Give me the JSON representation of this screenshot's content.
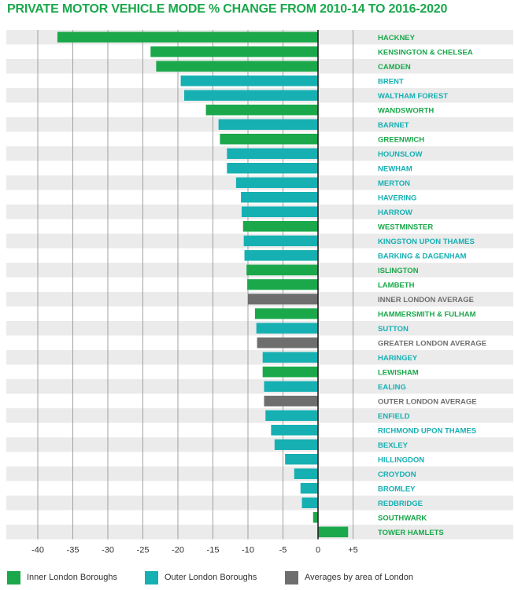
{
  "colors": {
    "inner": "#1aa84b",
    "outer": "#16b0b3",
    "average": "#6e6e6e"
  },
  "chart_data": {
    "type": "bar",
    "orientation": "horizontal",
    "title": "PRIVATE MOTOR VEHICLE MODE % CHANGE FROM 2010-14 TO 2016-2020",
    "xlim": [
      -40,
      5
    ],
    "xticks": [
      -40,
      -35,
      -30,
      -25,
      -20,
      -15,
      -10,
      -5,
      0,
      5
    ],
    "xtick_labels": [
      "-40",
      "-35",
      "-30",
      "-25",
      "-20",
      "-15",
      "-10",
      "-5",
      "0",
      "+5"
    ],
    "legend": [
      {
        "key": "inner",
        "label": "Inner London Boroughs"
      },
      {
        "key": "outer",
        "label": "Outer London Boroughs"
      },
      {
        "key": "average",
        "label": "Averages by area of London"
      }
    ],
    "bars": [
      {
        "label": "HACKNEY",
        "value": -37.2,
        "group": "inner"
      },
      {
        "label": "KENSINGTON & CHELSEA",
        "value": -23.9,
        "group": "inner"
      },
      {
        "label": "CAMDEN",
        "value": -23.1,
        "group": "inner"
      },
      {
        "label": "BRENT",
        "value": -19.6,
        "group": "outer"
      },
      {
        "label": "WALTHAM FOREST",
        "value": -19.1,
        "group": "outer"
      },
      {
        "label": "WANDSWORTH",
        "value": -16.0,
        "group": "inner"
      },
      {
        "label": "BARNET",
        "value": -14.2,
        "group": "outer"
      },
      {
        "label": "GREENWICH",
        "value": -14.0,
        "group": "inner"
      },
      {
        "label": "HOUNSLOW",
        "value": -13.0,
        "group": "outer"
      },
      {
        "label": "NEWHAM",
        "value": -13.0,
        "group": "outer"
      },
      {
        "label": "MERTON",
        "value": -11.7,
        "group": "outer"
      },
      {
        "label": "HAVERING",
        "value": -11.0,
        "group": "outer"
      },
      {
        "label": "HARROW",
        "value": -10.9,
        "group": "outer"
      },
      {
        "label": "WESTMINSTER",
        "value": -10.7,
        "group": "inner"
      },
      {
        "label": "KINGSTON UPON THAMES",
        "value": -10.6,
        "group": "outer"
      },
      {
        "label": "BARKING & DAGENHAM",
        "value": -10.5,
        "group": "outer"
      },
      {
        "label": "ISLINGTON",
        "value": -10.2,
        "group": "inner"
      },
      {
        "label": "LAMBETH",
        "value": -10.1,
        "group": "inner"
      },
      {
        "label": "INNER LONDON AVERAGE",
        "value": -10.0,
        "group": "average"
      },
      {
        "label": "HAMMERSMITH & FULHAM",
        "value": -9.0,
        "group": "inner"
      },
      {
        "label": "SUTTON",
        "value": -8.8,
        "group": "outer"
      },
      {
        "label": "GREATER LONDON AVERAGE",
        "value": -8.7,
        "group": "average"
      },
      {
        "label": "HARINGEY",
        "value": -7.9,
        "group": "outer"
      },
      {
        "label": "LEWISHAM",
        "value": -7.9,
        "group": "inner"
      },
      {
        "label": "EALING",
        "value": -7.7,
        "group": "outer"
      },
      {
        "label": "OUTER LONDON AVERAGE",
        "value": -7.7,
        "group": "average"
      },
      {
        "label": "ENFIELD",
        "value": -7.5,
        "group": "outer"
      },
      {
        "label": "RICHMOND UPON THAMES",
        "value": -6.7,
        "group": "outer"
      },
      {
        "label": "BEXLEY",
        "value": -6.2,
        "group": "outer"
      },
      {
        "label": "HILLINGDON",
        "value": -4.7,
        "group": "outer"
      },
      {
        "label": "CROYDON",
        "value": -3.4,
        "group": "outer"
      },
      {
        "label": "BROMLEY",
        "value": -2.5,
        "group": "outer"
      },
      {
        "label": "REDBRIDGE",
        "value": -2.3,
        "group": "outer"
      },
      {
        "label": "SOUTHWARK",
        "value": -0.7,
        "group": "inner"
      },
      {
        "label": "TOWER HAMLETS",
        "value": 4.3,
        "group": "inner"
      }
    ]
  }
}
